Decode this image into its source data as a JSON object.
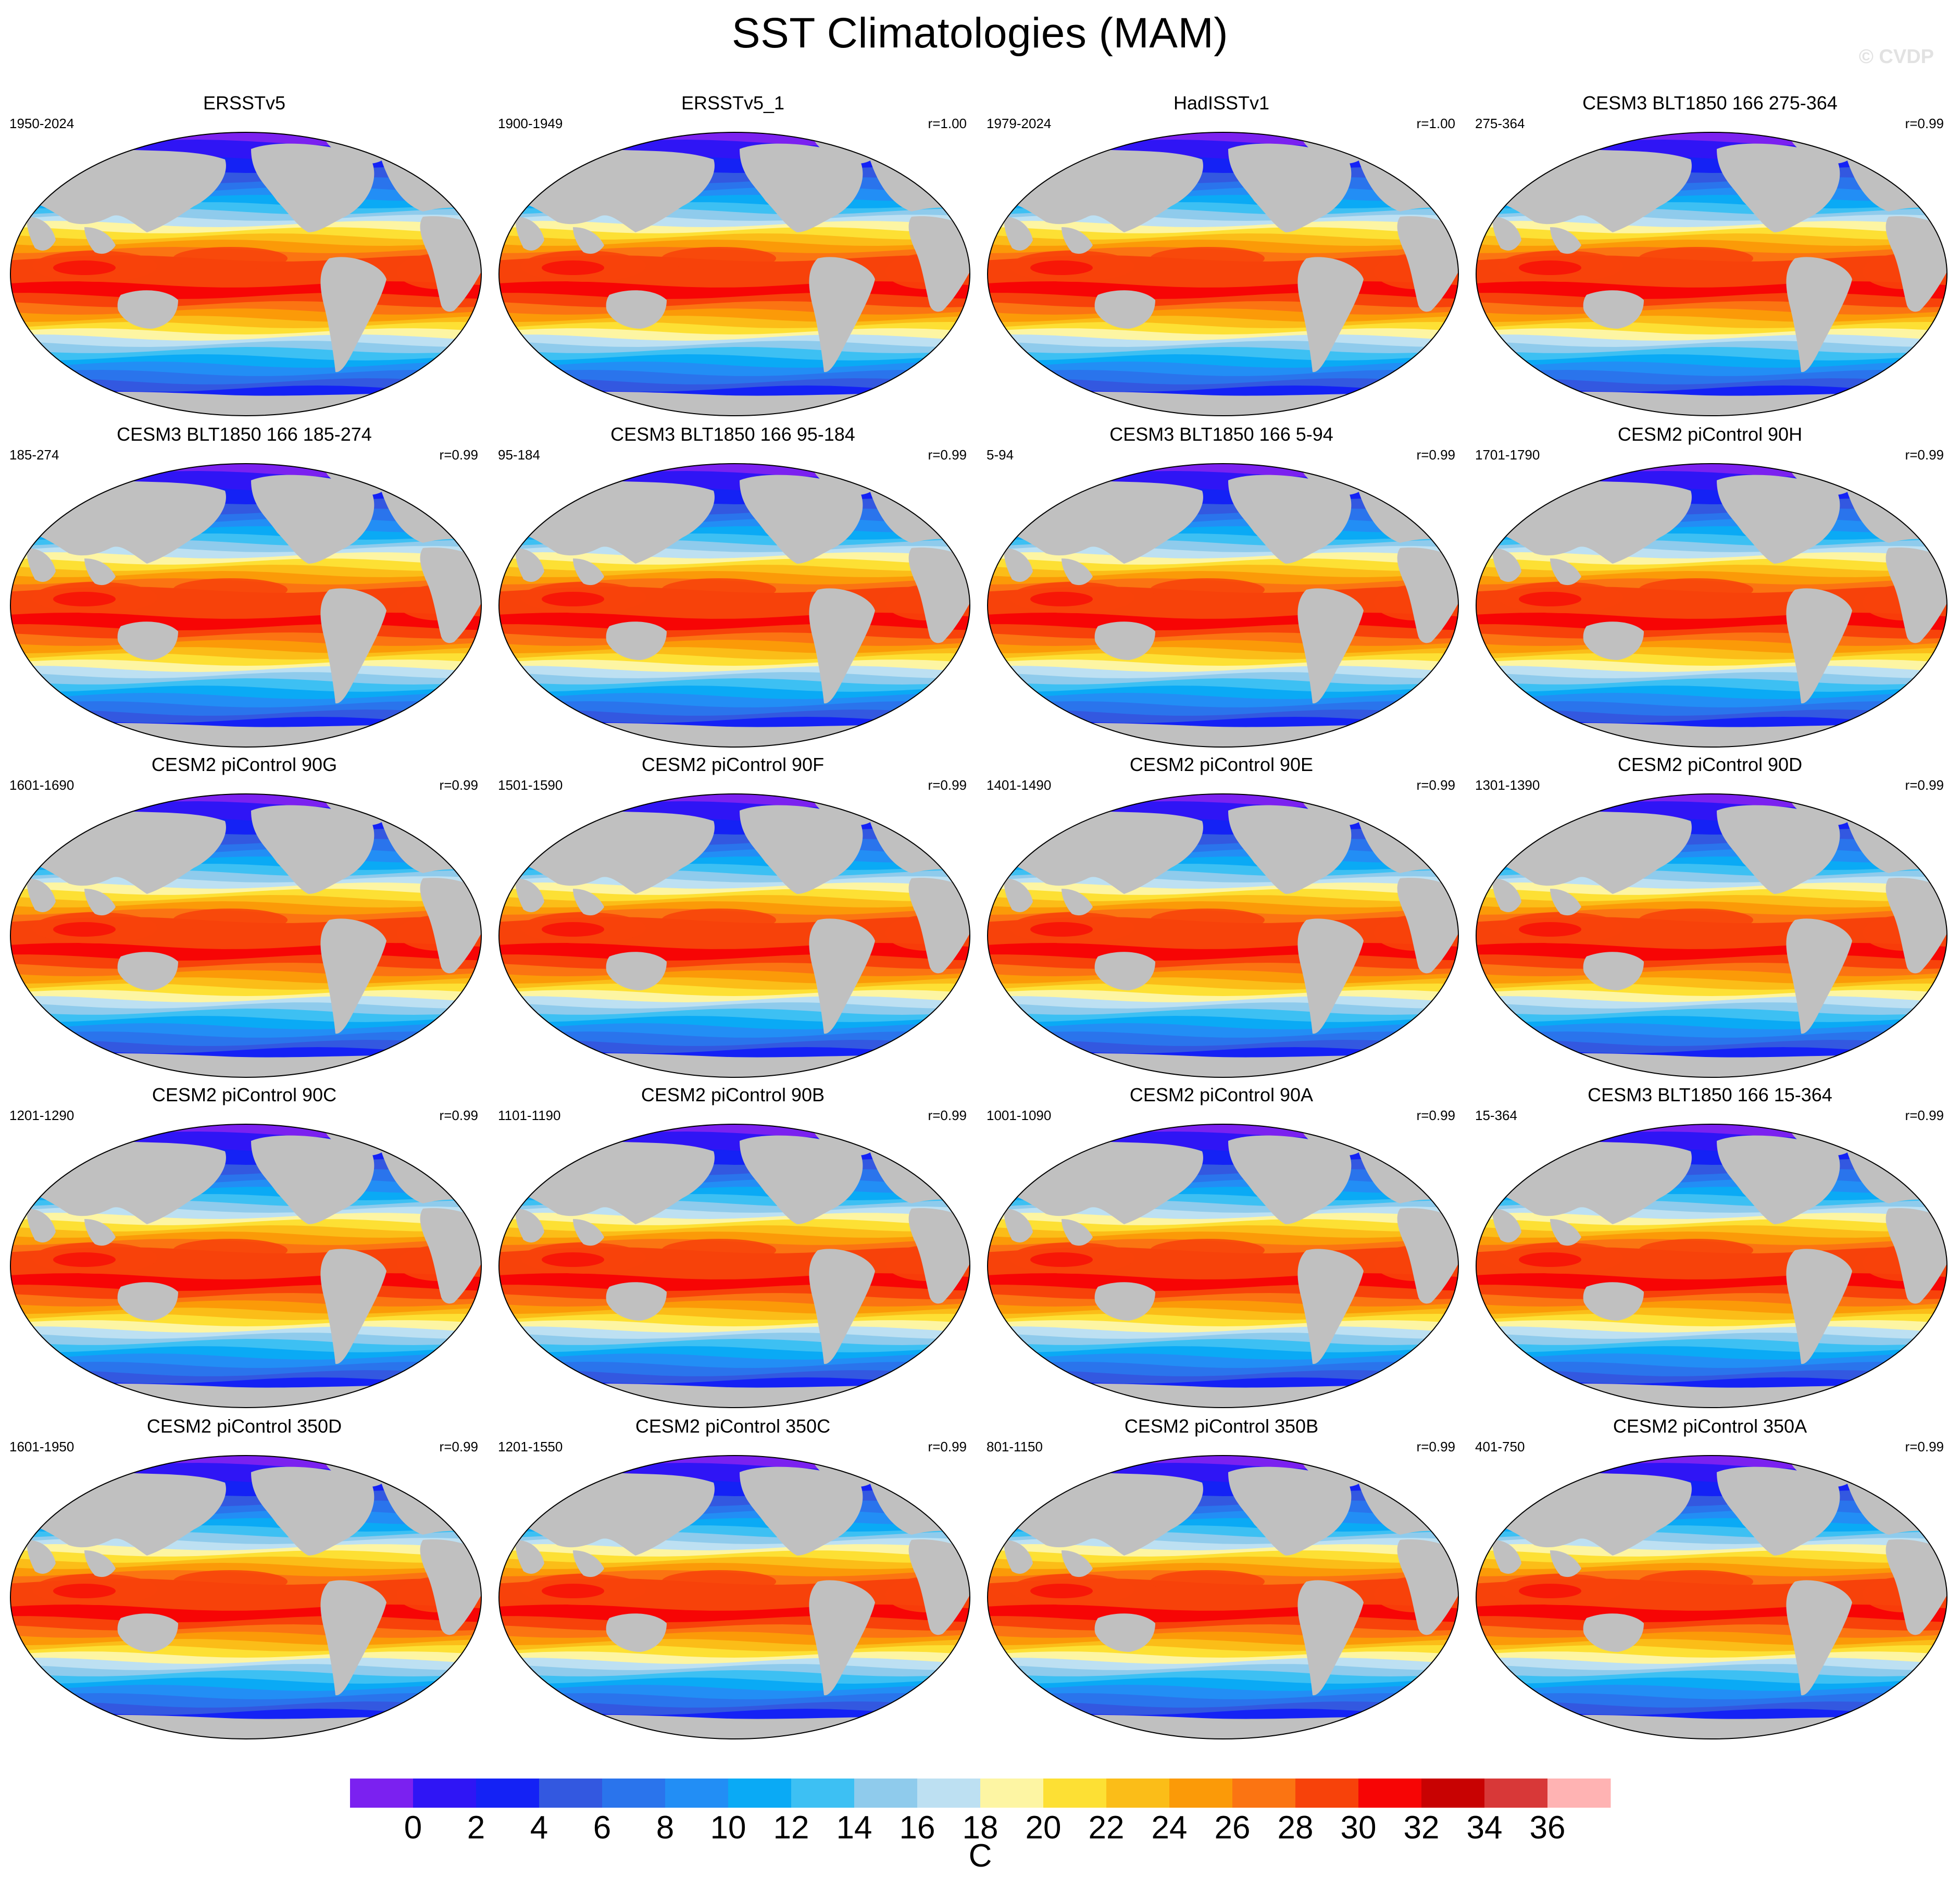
{
  "title": "SST Climatologies (MAM)",
  "watermark": "© CVDP",
  "colors": {
    "land": "#c0c0c0",
    "border": "#000000",
    "coast": "#ffffff"
  },
  "colorbar": {
    "ticks": [
      "0",
      "2",
      "4",
      "6",
      "8",
      "10",
      "12",
      "14",
      "16",
      "18",
      "20",
      "22",
      "24",
      "26",
      "28",
      "30",
      "32",
      "34",
      "36"
    ],
    "unit": "C",
    "colors": [
      "#7b21f0",
      "#2f15f5",
      "#1422f5",
      "#3358e0",
      "#2a74ec",
      "#228ef5",
      "#0aaaf5",
      "#3dc0f3",
      "#8fcbec",
      "#bde0f2",
      "#fdf5a3",
      "#fde034",
      "#fbbd18",
      "#fb9a08",
      "#fb7412",
      "#f7420a",
      "#f70505",
      "#c80202",
      "#d83838",
      "#ffb3b3"
    ]
  },
  "panels": [
    {
      "title": "ERSSTv5",
      "years": "1950-2024",
      "r": ""
    },
    {
      "title": "ERSSTv5_1",
      "years": "1900-1949",
      "r": "r=1.00"
    },
    {
      "title": "HadISSTv1",
      "years": "1979-2024",
      "r": "r=1.00"
    },
    {
      "title": "CESM3 BLT1850 166 275-364",
      "years": "275-364",
      "r": "r=0.99"
    },
    {
      "title": "CESM3 BLT1850 166 185-274",
      "years": "185-274",
      "r": "r=0.99"
    },
    {
      "title": "CESM3 BLT1850 166 95-184",
      "years": "95-184",
      "r": "r=0.99"
    },
    {
      "title": "CESM3 BLT1850 166 5-94",
      "years": "5-94",
      "r": "r=0.99"
    },
    {
      "title": "CESM2 piControl 90H",
      "years": "1701-1790",
      "r": "r=0.99"
    },
    {
      "title": "CESM2 piControl 90G",
      "years": "1601-1690",
      "r": "r=0.99"
    },
    {
      "title": "CESM2 piControl 90F",
      "years": "1501-1590",
      "r": "r=0.99"
    },
    {
      "title": "CESM2 piControl 90E",
      "years": "1401-1490",
      "r": "r=0.99"
    },
    {
      "title": "CESM2 piControl 90D",
      "years": "1301-1390",
      "r": "r=0.99"
    },
    {
      "title": "CESM2 piControl 90C",
      "years": "1201-1290",
      "r": "r=0.99"
    },
    {
      "title": "CESM2 piControl 90B",
      "years": "1101-1190",
      "r": "r=0.99"
    },
    {
      "title": "CESM2 piControl 90A",
      "years": "1001-1090",
      "r": "r=0.99"
    },
    {
      "title": "CESM3 BLT1850 166 15-364",
      "years": "15-364",
      "r": "r=0.99"
    },
    {
      "title": "CESM2 piControl 350D",
      "years": "1601-1950",
      "r": "r=0.99"
    },
    {
      "title": "CESM2 piControl 350C",
      "years": "1201-1550",
      "r": "r=0.99"
    },
    {
      "title": "CESM2 piControl 350B",
      "years": "801-1150",
      "r": "r=0.99"
    },
    {
      "title": "CESM2 piControl 350A",
      "years": "401-750",
      "r": "r=0.99"
    }
  ]
}
